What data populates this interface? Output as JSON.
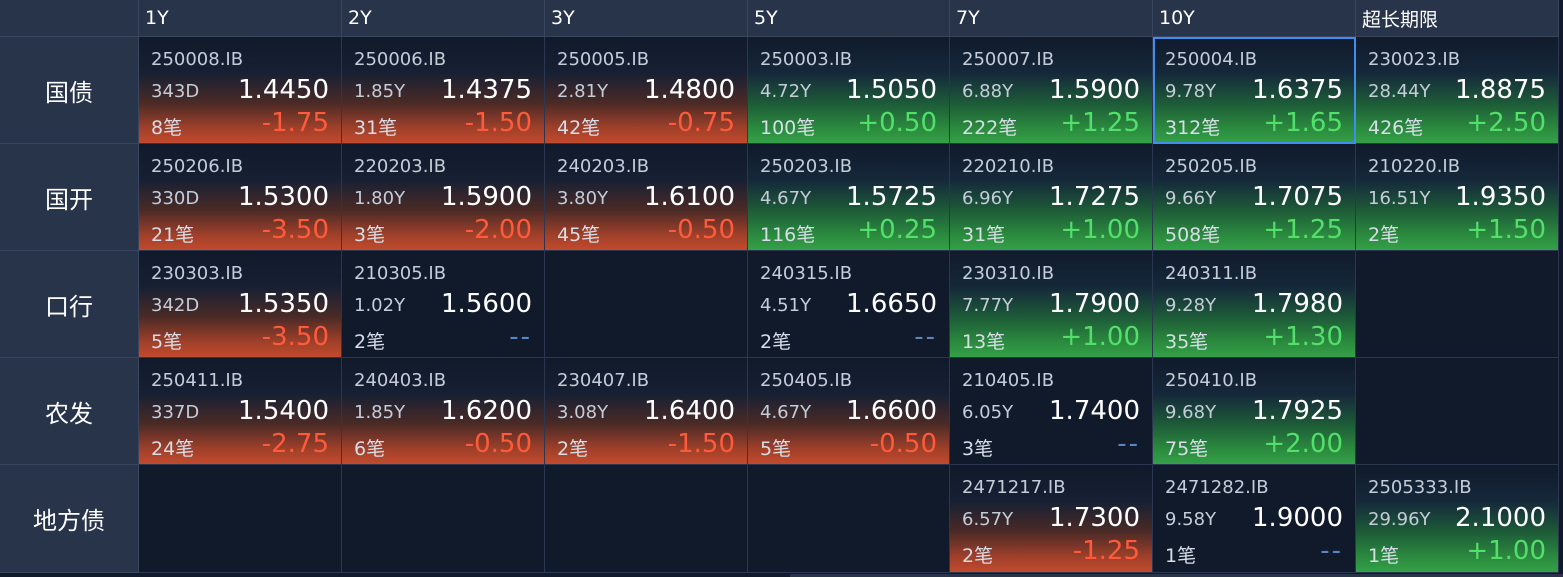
{
  "columns": [
    "1Y",
    "2Y",
    "3Y",
    "5Y",
    "7Y",
    "10Y",
    "超长期限"
  ],
  "rows": [
    {
      "label": "国债",
      "cells": [
        {
          "code": "250008.IB",
          "tenor": "343D",
          "yield": "1.4450",
          "trades": "8笔",
          "change": "-1.75",
          "dir": "neg"
        },
        {
          "code": "250006.IB",
          "tenor": "1.85Y",
          "yield": "1.4375",
          "trades": "31笔",
          "change": "-1.50",
          "dir": "neg"
        },
        {
          "code": "250005.IB",
          "tenor": "2.81Y",
          "yield": "1.4800",
          "trades": "42笔",
          "change": "-0.75",
          "dir": "neg"
        },
        {
          "code": "250003.IB",
          "tenor": "4.72Y",
          "yield": "1.5050",
          "trades": "100笔",
          "change": "+0.50",
          "dir": "pos"
        },
        {
          "code": "250007.IB",
          "tenor": "6.88Y",
          "yield": "1.5900",
          "trades": "222笔",
          "change": "+1.25",
          "dir": "pos"
        },
        {
          "code": "250004.IB",
          "tenor": "9.78Y",
          "yield": "1.6375",
          "trades": "312笔",
          "change": "+1.65",
          "dir": "pos",
          "selected": true
        },
        {
          "code": "230023.IB",
          "tenor": "28.44Y",
          "yield": "1.8875",
          "trades": "426笔",
          "change": "+2.50",
          "dir": "pos"
        }
      ]
    },
    {
      "label": "国开",
      "cells": [
        {
          "code": "250206.IB",
          "tenor": "330D",
          "yield": "1.5300",
          "trades": "21笔",
          "change": "-3.50",
          "dir": "neg"
        },
        {
          "code": "220203.IB",
          "tenor": "1.80Y",
          "yield": "1.5900",
          "trades": "3笔",
          "change": "-2.00",
          "dir": "neg"
        },
        {
          "code": "240203.IB",
          "tenor": "3.80Y",
          "yield": "1.6100",
          "trades": "45笔",
          "change": "-0.50",
          "dir": "neg"
        },
        {
          "code": "250203.IB",
          "tenor": "4.67Y",
          "yield": "1.5725",
          "trades": "116笔",
          "change": "+0.25",
          "dir": "pos"
        },
        {
          "code": "220210.IB",
          "tenor": "6.96Y",
          "yield": "1.7275",
          "trades": "31笔",
          "change": "+1.00",
          "dir": "pos"
        },
        {
          "code": "250205.IB",
          "tenor": "9.66Y",
          "yield": "1.7075",
          "trades": "508笔",
          "change": "+1.25",
          "dir": "pos"
        },
        {
          "code": "210220.IB",
          "tenor": "16.51Y",
          "yield": "1.9350",
          "trades": "2笔",
          "change": "+1.50",
          "dir": "pos"
        }
      ]
    },
    {
      "label": "口行",
      "cells": [
        {
          "code": "230303.IB",
          "tenor": "342D",
          "yield": "1.5350",
          "trades": "5笔",
          "change": "-3.50",
          "dir": "neg"
        },
        {
          "code": "210305.IB",
          "tenor": "1.02Y",
          "yield": "1.5600",
          "trades": "2笔",
          "change": "--",
          "dir": "none"
        },
        null,
        {
          "code": "240315.IB",
          "tenor": "4.51Y",
          "yield": "1.6650",
          "trades": "2笔",
          "change": "--",
          "dir": "none"
        },
        {
          "code": "230310.IB",
          "tenor": "7.77Y",
          "yield": "1.7900",
          "trades": "13笔",
          "change": "+1.00",
          "dir": "pos"
        },
        {
          "code": "240311.IB",
          "tenor": "9.28Y",
          "yield": "1.7980",
          "trades": "35笔",
          "change": "+1.30",
          "dir": "pos"
        },
        null
      ]
    },
    {
      "label": "农发",
      "cells": [
        {
          "code": "250411.IB",
          "tenor": "337D",
          "yield": "1.5400",
          "trades": "24笔",
          "change": "-2.75",
          "dir": "neg"
        },
        {
          "code": "240403.IB",
          "tenor": "1.85Y",
          "yield": "1.6200",
          "trades": "6笔",
          "change": "-0.50",
          "dir": "neg"
        },
        {
          "code": "230407.IB",
          "tenor": "3.08Y",
          "yield": "1.6400",
          "trades": "2笔",
          "change": "-1.50",
          "dir": "neg"
        },
        {
          "code": "250405.IB",
          "tenor": "4.67Y",
          "yield": "1.6600",
          "trades": "5笔",
          "change": "-0.50",
          "dir": "neg"
        },
        {
          "code": "210405.IB",
          "tenor": "6.05Y",
          "yield": "1.7400",
          "trades": "3笔",
          "change": "--",
          "dir": "none"
        },
        {
          "code": "250410.IB",
          "tenor": "9.68Y",
          "yield": "1.7925",
          "trades": "75笔",
          "change": "+2.00",
          "dir": "pos"
        },
        null
      ]
    },
    {
      "label": "地方债",
      "cells": [
        null,
        null,
        null,
        null,
        {
          "code": "2471217.IB",
          "tenor": "6.57Y",
          "yield": "1.7300",
          "trades": "2笔",
          "change": "-1.25",
          "dir": "neg"
        },
        {
          "code": "2471282.IB",
          "tenor": "9.58Y",
          "yield": "1.9000",
          "trades": "1笔",
          "change": "--",
          "dir": "none"
        },
        {
          "code": "2505333.IB",
          "tenor": "29.96Y",
          "yield": "2.1000",
          "trades": "1笔",
          "change": "+1.00",
          "dir": "pos"
        }
      ]
    }
  ],
  "colors": {
    "neg": "#ff5a3a",
    "pos": "#52e06a",
    "none": "#5b86c6",
    "selected": "#3e8ef0"
  }
}
